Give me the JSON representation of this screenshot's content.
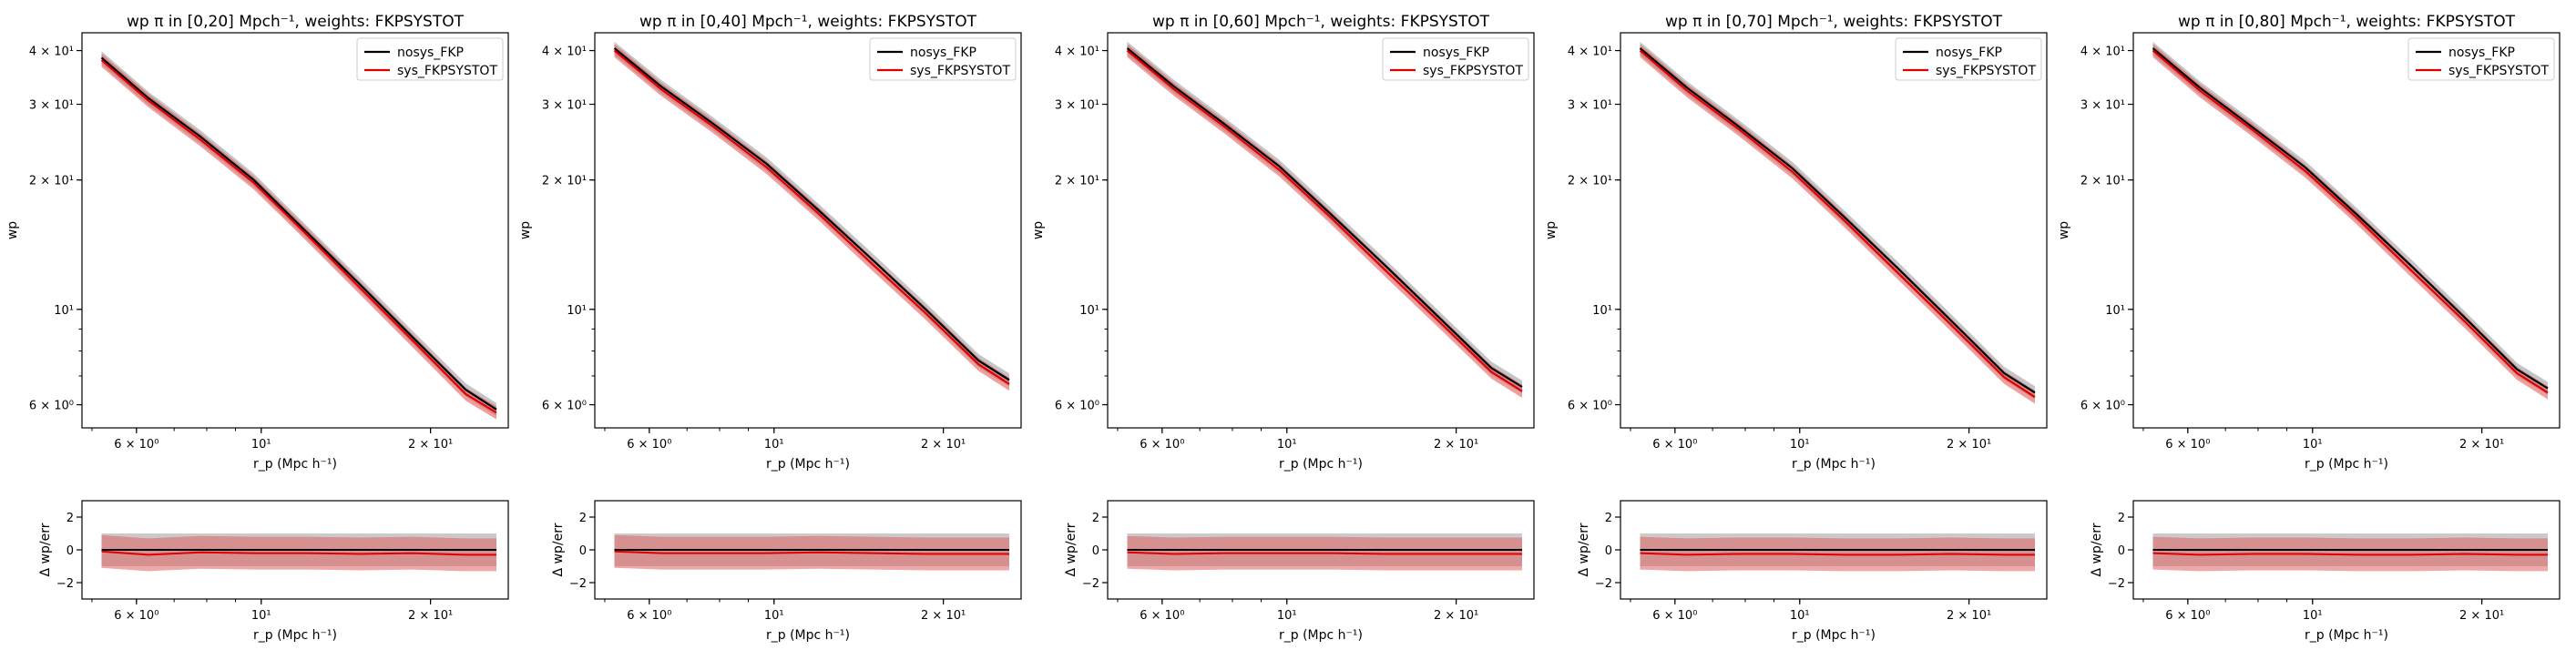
{
  "chart_data": [
    {
      "type": "line",
      "title": "wp π in [0,20] Mpch⁻¹, weights: FKPSYSTOT",
      "top": {
        "xlabel": "r_p (Mpc h⁻¹)",
        "ylabel": "wp",
        "xscale": "log",
        "yscale": "log",
        "xlim": [
          4.8,
          27.5
        ],
        "ylim": [
          5.3,
          44
        ],
        "xticks": [
          {
            "value": 6,
            "label": "6 × 10⁰"
          },
          {
            "value": 10,
            "label": "10¹"
          },
          {
            "value": 20,
            "label": "2 × 10¹"
          }
        ],
        "yticks": [
          {
            "value": 6,
            "label": "6 × 10⁰"
          },
          {
            "value": 10,
            "label": "10¹"
          },
          {
            "value": 20,
            "label": "2 × 10¹"
          },
          {
            "value": 30,
            "label": "3 × 10¹"
          },
          {
            "value": 40,
            "label": "4 × 10¹"
          }
        ],
        "x": [
          5.2,
          6.3,
          7.8,
          9.7,
          12.0,
          15.0,
          18.6,
          23.1,
          26.2
        ],
        "series": [
          {
            "name": "nosys_FKP",
            "color": "#000000",
            "band_color": "#9e9e9e",
            "values": [
              38.5,
              31.0,
              25.2,
              20.0,
              15.2,
              11.4,
              8.6,
              6.5,
              5.85
            ],
            "err_frac": 0.035
          },
          {
            "name": "sys_FKPSYSTOT",
            "color": "#e00000",
            "band_color": "#e06060",
            "values": [
              38.0,
              30.6,
              24.8,
              19.7,
              15.0,
              11.2,
              8.45,
              6.35,
              5.75
            ],
            "err_frac": 0.035
          }
        ],
        "legend": "top-right"
      },
      "bottom": {
        "xlabel": "r_p (Mpc h⁻¹)",
        "ylabel": "Δ wp/err",
        "xscale": "log",
        "xlim": [
          4.8,
          27.5
        ],
        "ylim": [
          -3,
          3
        ],
        "yticks": [
          {
            "value": 2,
            "label": "2"
          },
          {
            "value": 0,
            "label": "0"
          },
          {
            "value": -2,
            "label": "−2"
          }
        ],
        "xticks": [
          {
            "value": 6,
            "label": "6 × 10⁰"
          },
          {
            "value": 10,
            "label": "10¹"
          },
          {
            "value": 20,
            "label": "2 × 10¹"
          }
        ],
        "x": [
          5.2,
          6.3,
          7.8,
          9.7,
          12.0,
          15.0,
          18.6,
          23.1,
          26.2
        ],
        "series": [
          {
            "name": "nosys_FKP",
            "color": "#000000",
            "band_color": "#9e9e9e",
            "values": [
              0,
              0,
              0,
              0,
              0,
              0,
              0,
              0,
              0
            ]
          },
          {
            "name": "sys_FKPSYSTOT",
            "color": "#e00000",
            "band_color": "#e06060",
            "values": [
              -0.1,
              -0.3,
              -0.15,
              -0.2,
              -0.2,
              -0.25,
              -0.2,
              -0.3,
              -0.3
            ]
          }
        ]
      }
    },
    {
      "type": "line",
      "title": "wp π in [0,40] Mpch⁻¹, weights: FKPSYSTOT",
      "top": {
        "xlabel": "r_p (Mpc h⁻¹)",
        "ylabel": "wp",
        "xscale": "log",
        "yscale": "log",
        "xlim": [
          4.8,
          27.5
        ],
        "ylim": [
          5.3,
          44
        ],
        "xticks": [
          {
            "value": 6,
            "label": "6 × 10⁰"
          },
          {
            "value": 10,
            "label": "10¹"
          },
          {
            "value": 20,
            "label": "2 × 10¹"
          }
        ],
        "yticks": [
          {
            "value": 6,
            "label": "6 × 10⁰"
          },
          {
            "value": 10,
            "label": "10¹"
          },
          {
            "value": 20,
            "label": "2 × 10¹"
          },
          {
            "value": 30,
            "label": "3 × 10¹"
          },
          {
            "value": 40,
            "label": "4 × 10¹"
          }
        ],
        "x": [
          5.2,
          6.3,
          7.8,
          9.7,
          12.0,
          15.0,
          18.6,
          23.1,
          26.2
        ],
        "series": [
          {
            "name": "nosys_FKP",
            "color": "#000000",
            "band_color": "#9e9e9e",
            "values": [
              40.5,
              33.0,
              27.0,
              21.8,
              17.0,
              13.0,
              10.0,
              7.6,
              6.85
            ],
            "err_frac": 0.035
          },
          {
            "name": "sys_FKPSYSTOT",
            "color": "#e00000",
            "band_color": "#e06060",
            "values": [
              40.0,
              32.5,
              26.6,
              21.4,
              16.7,
              12.7,
              9.8,
              7.45,
              6.7
            ],
            "err_frac": 0.035
          }
        ],
        "legend": "top-right"
      },
      "bottom": {
        "xlabel": "r_p (Mpc h⁻¹)",
        "ylabel": "Δ wp/err",
        "xscale": "log",
        "xlim": [
          4.8,
          27.5
        ],
        "ylim": [
          -3,
          3
        ],
        "yticks": [
          {
            "value": 2,
            "label": "2"
          },
          {
            "value": 0,
            "label": "0"
          },
          {
            "value": -2,
            "label": "−2"
          }
        ],
        "xticks": [
          {
            "value": 6,
            "label": "6 × 10⁰"
          },
          {
            "value": 10,
            "label": "10¹"
          },
          {
            "value": 20,
            "label": "2 × 10¹"
          }
        ],
        "x": [
          5.2,
          6.3,
          7.8,
          9.7,
          12.0,
          15.0,
          18.6,
          23.1,
          26.2
        ],
        "series": [
          {
            "name": "nosys_FKP",
            "color": "#000000",
            "band_color": "#9e9e9e",
            "values": [
              0,
              0,
              0,
              0,
              0,
              0,
              0,
              0,
              0
            ]
          },
          {
            "name": "sys_FKPSYSTOT",
            "color": "#e00000",
            "band_color": "#e06060",
            "values": [
              -0.1,
              -0.2,
              -0.2,
              -0.2,
              -0.15,
              -0.2,
              -0.25,
              -0.25,
              -0.25
            ]
          }
        ]
      }
    },
    {
      "type": "line",
      "title": "wp π in [0,60] Mpch⁻¹, weights: FKPSYSTOT",
      "top": {
        "xlabel": "r_p (Mpc h⁻¹)",
        "ylabel": "wp",
        "xscale": "log",
        "yscale": "log",
        "xlim": [
          4.8,
          27.5
        ],
        "ylim": [
          5.3,
          44
        ],
        "xticks": [
          {
            "value": 6,
            "label": "6 × 10⁰"
          },
          {
            "value": 10,
            "label": "10¹"
          },
          {
            "value": 20,
            "label": "2 × 10¹"
          }
        ],
        "yticks": [
          {
            "value": 6,
            "label": "6 × 10⁰"
          },
          {
            "value": 10,
            "label": "10¹"
          },
          {
            "value": 20,
            "label": "2 × 10¹"
          },
          {
            "value": 30,
            "label": "3 × 10¹"
          },
          {
            "value": 40,
            "label": "4 × 10¹"
          }
        ],
        "x": [
          5.2,
          6.3,
          7.8,
          9.7,
          12.0,
          15.0,
          18.6,
          23.1,
          26.2
        ],
        "series": [
          {
            "name": "nosys_FKP",
            "color": "#000000",
            "band_color": "#9e9e9e",
            "values": [
              40.5,
              33.0,
              26.8,
              21.5,
              16.6,
              12.6,
              9.6,
              7.3,
              6.6
            ],
            "err_frac": 0.035
          },
          {
            "name": "sys_FKPSYSTOT",
            "color": "#e00000",
            "band_color": "#e06060",
            "values": [
              40.0,
              32.5,
              26.4,
              21.1,
              16.3,
              12.3,
              9.4,
              7.15,
              6.45
            ],
            "err_frac": 0.035
          }
        ],
        "legend": "top-right"
      },
      "bottom": {
        "xlabel": "r_p (Mpc h⁻¹)",
        "ylabel": "Δ wp/err",
        "xscale": "log",
        "xlim": [
          4.8,
          27.5
        ],
        "ylim": [
          -3,
          3
        ],
        "yticks": [
          {
            "value": 2,
            "label": "2"
          },
          {
            "value": 0,
            "label": "0"
          },
          {
            "value": -2,
            "label": "−2"
          }
        ],
        "xticks": [
          {
            "value": 6,
            "label": "6 × 10⁰"
          },
          {
            "value": 10,
            "label": "10¹"
          },
          {
            "value": 20,
            "label": "2 × 10¹"
          }
        ],
        "x": [
          5.2,
          6.3,
          7.8,
          9.7,
          12.0,
          15.0,
          18.6,
          23.1,
          26.2
        ],
        "series": [
          {
            "name": "nosys_FKP",
            "color": "#000000",
            "band_color": "#9e9e9e",
            "values": [
              0,
              0,
              0,
              0,
              0,
              0,
              0,
              0,
              0
            ]
          },
          {
            "name": "sys_FKPSYSTOT",
            "color": "#e00000",
            "band_color": "#e06060",
            "values": [
              -0.15,
              -0.25,
              -0.2,
              -0.2,
              -0.2,
              -0.25,
              -0.25,
              -0.25,
              -0.25
            ]
          }
        ]
      }
    },
    {
      "type": "line",
      "title": "wp π in [0,70] Mpch⁻¹, weights: FKPSYSTOT",
      "top": {
        "xlabel": "r_p (Mpc h⁻¹)",
        "ylabel": "wp",
        "xscale": "log",
        "yscale": "log",
        "xlim": [
          4.8,
          27.5
        ],
        "ylim": [
          5.3,
          44
        ],
        "xticks": [
          {
            "value": 6,
            "label": "6 × 10⁰"
          },
          {
            "value": 10,
            "label": "10¹"
          },
          {
            "value": 20,
            "label": "2 × 10¹"
          }
        ],
        "yticks": [
          {
            "value": 6,
            "label": "6 × 10⁰"
          },
          {
            "value": 10,
            "label": "10¹"
          },
          {
            "value": 20,
            "label": "2 × 10¹"
          },
          {
            "value": 30,
            "label": "3 × 10¹"
          },
          {
            "value": 40,
            "label": "4 × 10¹"
          }
        ],
        "x": [
          5.2,
          6.3,
          7.8,
          9.7,
          12.0,
          15.0,
          18.6,
          23.1,
          26.2
        ],
        "series": [
          {
            "name": "nosys_FKP",
            "color": "#000000",
            "band_color": "#9e9e9e",
            "values": [
              40.5,
              32.8,
              26.6,
              21.3,
              16.4,
              12.4,
              9.4,
              7.1,
              6.4
            ],
            "err_frac": 0.035
          },
          {
            "name": "sys_FKPSYSTOT",
            "color": "#e00000",
            "band_color": "#e06060",
            "values": [
              40.0,
              32.3,
              26.2,
              20.9,
              16.1,
              12.1,
              9.2,
              6.95,
              6.25
            ],
            "err_frac": 0.035
          }
        ],
        "legend": "top-right"
      },
      "bottom": {
        "xlabel": "r_p (Mpc h⁻¹)",
        "ylabel": "Δ wp/err",
        "xscale": "log",
        "xlim": [
          4.8,
          27.5
        ],
        "ylim": [
          -3,
          3
        ],
        "yticks": [
          {
            "value": 2,
            "label": "2"
          },
          {
            "value": 0,
            "label": "0"
          },
          {
            "value": -2,
            "label": "−2"
          }
        ],
        "xticks": [
          {
            "value": 6,
            "label": "6 × 10⁰"
          },
          {
            "value": 10,
            "label": "10¹"
          },
          {
            "value": 20,
            "label": "2 × 10¹"
          }
        ],
        "x": [
          5.2,
          6.3,
          7.8,
          9.7,
          12.0,
          15.0,
          18.6,
          23.1,
          26.2
        ],
        "series": [
          {
            "name": "nosys_FKP",
            "color": "#000000",
            "band_color": "#9e9e9e",
            "values": [
              0,
              0,
              0,
              0,
              0,
              0,
              0,
              0,
              0
            ]
          },
          {
            "name": "sys_FKPSYSTOT",
            "color": "#e00000",
            "band_color": "#e06060",
            "values": [
              -0.2,
              -0.3,
              -0.25,
              -0.25,
              -0.3,
              -0.3,
              -0.25,
              -0.3,
              -0.3
            ]
          }
        ]
      }
    },
    {
      "type": "line",
      "title": "wp π in [0,80] Mpch⁻¹, weights: FKPSYSTOT",
      "top": {
        "xlabel": "r_p (Mpc h⁻¹)",
        "ylabel": "wp",
        "xscale": "log",
        "yscale": "log",
        "xlim": [
          4.8,
          27.5
        ],
        "ylim": [
          5.3,
          44
        ],
        "xticks": [
          {
            "value": 6,
            "label": "6 × 10⁰"
          },
          {
            "value": 10,
            "label": "10¹"
          },
          {
            "value": 20,
            "label": "2 × 10¹"
          }
        ],
        "yticks": [
          {
            "value": 6,
            "label": "6 × 10⁰"
          },
          {
            "value": 10,
            "label": "10¹"
          },
          {
            "value": 20,
            "label": "2 × 10¹"
          },
          {
            "value": 30,
            "label": "3 × 10¹"
          },
          {
            "value": 40,
            "label": "4 × 10¹"
          }
        ],
        "x": [
          5.2,
          6.3,
          7.8,
          9.7,
          12.0,
          15.0,
          18.6,
          23.1,
          26.2
        ],
        "series": [
          {
            "name": "nosys_FKP",
            "color": "#000000",
            "band_color": "#9e9e9e",
            "values": [
              40.5,
              32.8,
              26.6,
              21.4,
              16.6,
              12.6,
              9.6,
              7.25,
              6.55
            ],
            "err_frac": 0.035
          },
          {
            "name": "sys_FKPSYSTOT",
            "color": "#e00000",
            "band_color": "#e06060",
            "values": [
              40.0,
              32.3,
              26.2,
              21.0,
              16.3,
              12.3,
              9.4,
              7.1,
              6.4
            ],
            "err_frac": 0.035
          }
        ],
        "legend": "top-right"
      },
      "bottom": {
        "xlabel": "r_p (Mpc h⁻¹)",
        "ylabel": "Δ wp/err",
        "xscale": "log",
        "xlim": [
          4.8,
          27.5
        ],
        "ylim": [
          -3,
          3
        ],
        "yticks": [
          {
            "value": 2,
            "label": "2"
          },
          {
            "value": 0,
            "label": "0"
          },
          {
            "value": -2,
            "label": "−2"
          }
        ],
        "xticks": [
          {
            "value": 6,
            "label": "6 × 10⁰"
          },
          {
            "value": 10,
            "label": "10¹"
          },
          {
            "value": 20,
            "label": "2 × 10¹"
          }
        ],
        "x": [
          5.2,
          6.3,
          7.8,
          9.7,
          12.0,
          15.0,
          18.6,
          23.1,
          26.2
        ],
        "series": [
          {
            "name": "nosys_FKP",
            "color": "#000000",
            "band_color": "#9e9e9e",
            "values": [
              0,
              0,
              0,
              0,
              0,
              0,
              0,
              0,
              0
            ]
          },
          {
            "name": "sys_FKPSYSTOT",
            "color": "#e00000",
            "band_color": "#e06060",
            "values": [
              -0.2,
              -0.3,
              -0.25,
              -0.25,
              -0.3,
              -0.3,
              -0.25,
              -0.3,
              -0.3
            ]
          }
        ]
      }
    }
  ]
}
